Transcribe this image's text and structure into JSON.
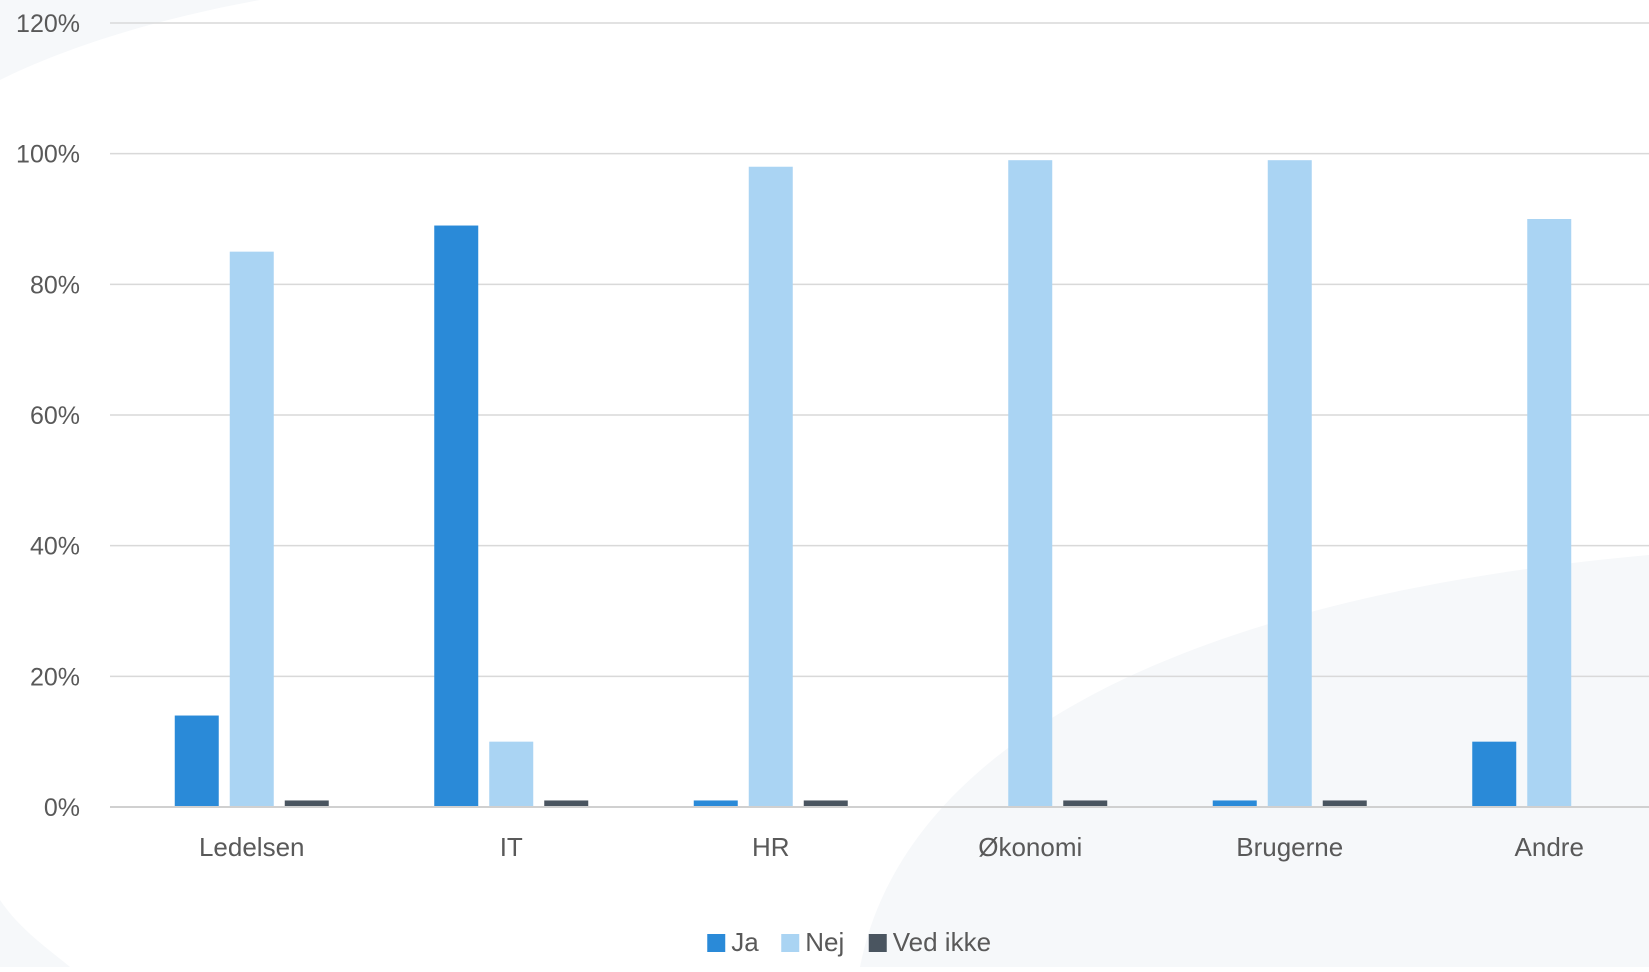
{
  "chart_data": {
    "type": "bar",
    "title": "",
    "xlabel": "",
    "ylabel": "",
    "categories": [
      "Ledelsen",
      "IT",
      "HR",
      "Økonomi",
      "Brugerne",
      "Andre"
    ],
    "series": [
      {
        "name": "Ja",
        "color": "#2a8ad8",
        "values": [
          14,
          89,
          1,
          0,
          1,
          10
        ]
      },
      {
        "name": "Nej",
        "color": "#aad4f3",
        "values": [
          85,
          10,
          98,
          99,
          99,
          90
        ]
      },
      {
        "name": "Ved ikke",
        "color": "#4a5560",
        "values": [
          1,
          1,
          1,
          1,
          1,
          0
        ]
      }
    ],
    "ylim": [
      0,
      120
    ],
    "yticks": [
      0,
      20,
      40,
      60,
      80,
      100,
      120
    ],
    "ytick_labels": [
      "0%",
      "20%",
      "40%",
      "60%",
      "80%",
      "100%",
      "120%"
    ],
    "grid": true,
    "legend_position": "bottom"
  }
}
